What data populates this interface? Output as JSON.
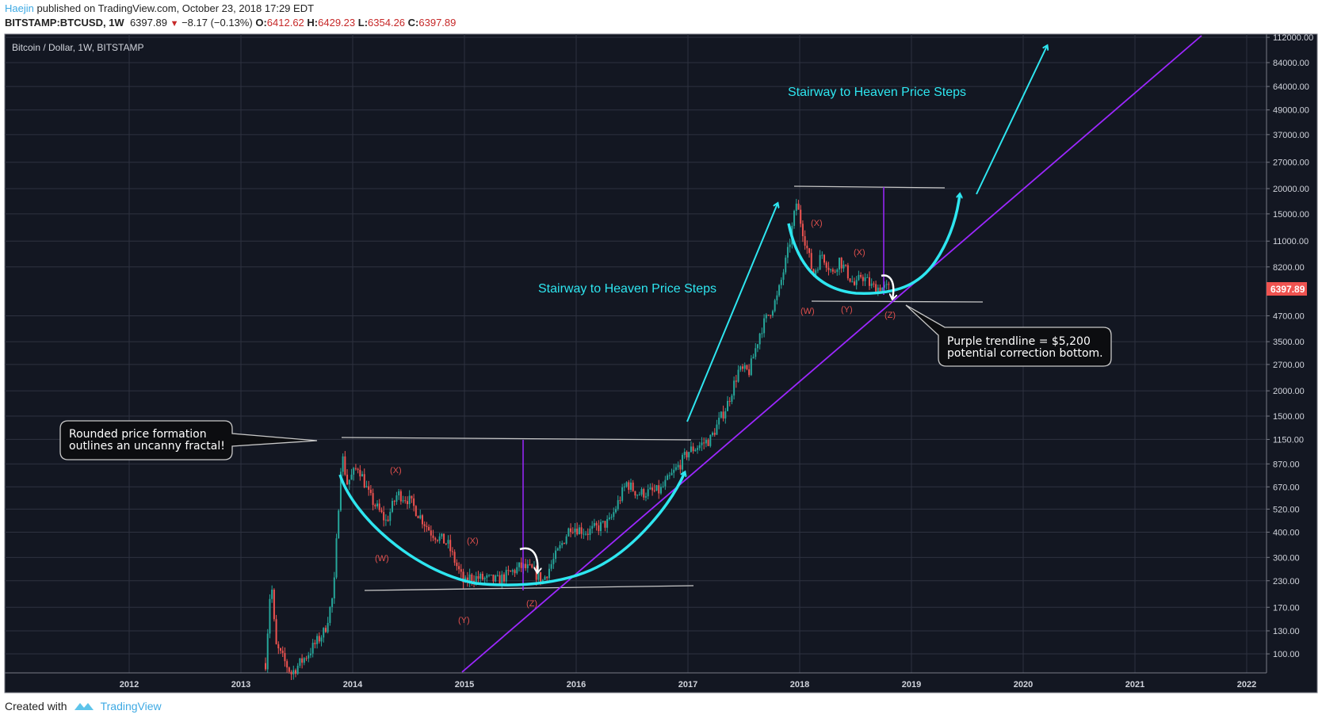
{
  "header": {
    "author": "Haejin",
    "published_text": "published on TradingView.com, October 23, 2018 17:29 EDT",
    "symbol": "BITSTAMP:BTCUSD, 1W",
    "last": "6397.89",
    "change": "−8.17 (−0.13%)",
    "open_label": "O:",
    "open": "6412.62",
    "high_label": "H:",
    "high": "6429.23",
    "low_label": "L:",
    "low": "6354.26",
    "close_label": "C:",
    "close": "6397.89"
  },
  "chart_data": {
    "type": "candlestick",
    "title": "Bitcoin / Dollar, 1W, BITSTAMP",
    "scale": "log",
    "x_ticks": [
      "2012",
      "2013",
      "2014",
      "2015",
      "2016",
      "2017",
      "2018",
      "2019",
      "2020",
      "2021",
      "2022"
    ],
    "y_ticks": [
      "112000.00",
      "84000.00",
      "64000.00",
      "49000.00",
      "37000.00",
      "27000.00",
      "20000.00",
      "15000.00",
      "11000.00",
      "8200.00",
      "4700.00",
      "3500.00",
      "2700.00",
      "2000.00",
      "1500.00",
      "1150.00",
      "870.00",
      "670.00",
      "520.00",
      "400.00",
      "300.00",
      "230.00",
      "170.00",
      "130.00",
      "100.00"
    ],
    "last_price_label": "6397.89",
    "price_path": [
      [
        2013.22,
        90
      ],
      [
        2013.27,
        240
      ],
      [
        2013.31,
        110
      ],
      [
        2013.45,
        80
      ],
      [
        2013.6,
        100
      ],
      [
        2013.75,
        130
      ],
      [
        2013.83,
        200
      ],
      [
        2013.9,
        1000
      ],
      [
        2013.95,
        700
      ],
      [
        2014.05,
        850
      ],
      [
        2014.15,
        600
      ],
      [
        2014.3,
        450
      ],
      [
        2014.4,
        620
      ],
      [
        2014.5,
        580
      ],
      [
        2014.7,
        400
      ],
      [
        2014.85,
        350
      ],
      [
        2015.0,
        220
      ],
      [
        2015.05,
        240
      ],
      [
        2015.3,
        230
      ],
      [
        2015.5,
        270
      ],
      [
        2015.6,
        260
      ],
      [
        2015.7,
        230
      ],
      [
        2015.85,
        330
      ],
      [
        2015.95,
        430
      ],
      [
        2016.1,
        400
      ],
      [
        2016.3,
        450
      ],
      [
        2016.45,
        700
      ],
      [
        2016.55,
        620
      ],
      [
        2016.75,
        640
      ],
      [
        2016.95,
        900
      ],
      [
        2017.0,
        1000
      ],
      [
        2017.2,
        1150
      ],
      [
        2017.35,
        1700
      ],
      [
        2017.45,
        2500
      ],
      [
        2017.55,
        2500
      ],
      [
        2017.65,
        4000
      ],
      [
        2017.8,
        5800
      ],
      [
        2017.9,
        10000
      ],
      [
        2017.97,
        17000
      ],
      [
        2018.05,
        11000
      ],
      [
        2018.12,
        7500
      ],
      [
        2018.2,
        9500
      ],
      [
        2018.3,
        7500
      ],
      [
        2018.35,
        9000
      ],
      [
        2018.5,
        6500
      ],
      [
        2018.55,
        7500
      ],
      [
        2018.65,
        6500
      ],
      [
        2018.81,
        6398
      ]
    ],
    "annotations": {
      "callout_left": [
        "Rounded price formation",
        "outlines an uncanny fractal!"
      ],
      "callout_right": [
        "Purple trendline = $5,200",
        "potential correction bottom."
      ],
      "stairway_1": "Stairway to Heaven Price Steps",
      "stairway_2": "Stairway to Heaven Price Steps",
      "wave_labels": [
        "(X)",
        "(W)",
        "(X)",
        "(Y)",
        "(Z)",
        "(X)",
        "(X)",
        "(W)",
        "(Y)",
        "(Z)"
      ]
    }
  },
  "colors": {
    "bg": "#131722",
    "grid": "#2e3240",
    "up": "#26a69a",
    "down": "#ef5350",
    "cyan": "#2ee6f0",
    "purple": "#9c27ff",
    "label_red": "#e0504d"
  },
  "footer": {
    "created_with": "Created with",
    "brand": "TradingView"
  }
}
